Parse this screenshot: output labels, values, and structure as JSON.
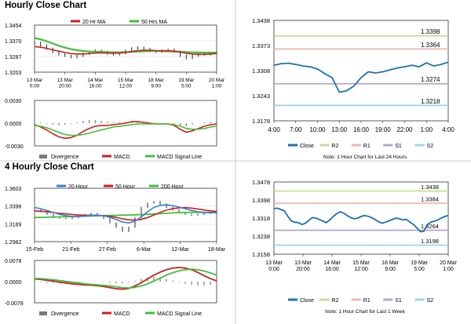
{
  "sections": {
    "hourly_title": "Hourly Close Chart",
    "four_hourly_title": "4 Hourly Close Chart"
  },
  "colors": {
    "price_bar": "#111111",
    "ma_red": "#cc1f1f",
    "ma_green": "#3fbf3f",
    "ma_blue": "#3a7fd0",
    "close_line": "#1f6fb2",
    "r2": "#c6dc97",
    "r1": "#f0b6b0",
    "s1": "#b7a5cf",
    "s2": "#9ed6e6",
    "divergence": "#7a7a7a",
    "grid": "#e3e3e3"
  },
  "chart_data": [
    {
      "id": "hourly_price",
      "type": "line",
      "title": "",
      "legend": [
        "20 Hr MA",
        "50 Hrs MA"
      ],
      "yticks": [
        "1.3454",
        "1.3370",
        "1.3287",
        "1.3203"
      ],
      "ylim": [
        1.3203,
        1.3454
      ],
      "xticks": [
        [
          "13 Mar",
          "0:00"
        ],
        [
          "13 Mar",
          "20:00"
        ],
        [
          "14 Mar",
          "16:00"
        ],
        [
          "15 Mar",
          "12:00"
        ],
        [
          "18 Mar",
          "9:00"
        ],
        [
          "19 Mar",
          "5:00"
        ],
        [
          "20 Mar",
          "1:00"
        ]
      ],
      "series": [
        {
          "name": "Close",
          "values": [
            1.336,
            1.3345,
            1.3328,
            1.331,
            1.3298,
            1.329,
            1.3283,
            1.329,
            1.3302,
            1.3312,
            1.3318,
            1.331,
            1.3302,
            1.3298,
            1.3305,
            1.3318,
            1.333,
            1.3334,
            1.3326,
            1.3316,
            1.3312,
            1.3318,
            1.3322,
            1.3312,
            1.329,
            1.3278,
            1.3292,
            1.33,
            1.3298,
            1.3305,
            1.331
          ]
        },
        {
          "name": "20 Hr MA",
          "values": [
            1.334,
            1.3336,
            1.333,
            1.3322,
            1.3315,
            1.3308,
            1.3302,
            1.33,
            1.33,
            1.3302,
            1.3305,
            1.3306,
            1.3305,
            1.3304,
            1.3305,
            1.3308,
            1.3313,
            1.3318,
            1.332,
            1.332,
            1.3318,
            1.3317,
            1.3317,
            1.3315,
            1.331,
            1.3304,
            1.33,
            1.3298,
            1.3298,
            1.33,
            1.3302
          ]
        },
        {
          "name": "50 Hrs MA",
          "values": [
            1.3385,
            1.3378,
            1.3368,
            1.3356,
            1.3344,
            1.3334,
            1.3326,
            1.332,
            1.3316,
            1.3313,
            1.3312,
            1.3311,
            1.331,
            1.3309,
            1.3309,
            1.331,
            1.3311,
            1.3313,
            1.3314,
            1.3315,
            1.3315,
            1.3315,
            1.3314,
            1.3313,
            1.3312,
            1.331,
            1.3309,
            1.3308,
            1.3307,
            1.3307,
            1.3307
          ]
        }
      ]
    },
    {
      "id": "hourly_macd",
      "type": "line",
      "title": "",
      "legend": [
        "Divergence",
        "MACD",
        "MACD Signal Line"
      ],
      "yticks": [
        "0.0030",
        "0.0000",
        "-0.0030"
      ],
      "ylim": [
        -0.003,
        0.003
      ],
      "series": [
        {
          "name": "Divergence",
          "values": [
            0.0002,
            0.0001,
            -0.0001,
            -0.0002,
            -0.0003,
            -0.0002,
            -0.0001,
            0.0001,
            0.0003,
            0.0004,
            0.0004,
            0.0003,
            0.0002,
            0.0001,
            0.0001,
            0.0002,
            0.0003,
            0.0002,
            0.0001,
            0.0,
            -0.0001,
            -0.0001,
            0.0,
            -0.0001,
            -0.0003,
            -0.0004,
            -0.0002,
            0.0,
            0.0001,
            0.0002,
            0.0002
          ]
        },
        {
          "name": "MACD",
          "values": [
            -0.0002,
            -0.0005,
            -0.0009,
            -0.0014,
            -0.0018,
            -0.002,
            -0.0019,
            -0.0016,
            -0.0011,
            -0.0007,
            -0.0004,
            -0.0003,
            -0.0003,
            -0.0002,
            -0.0001,
            0.0,
            0.0002,
            0.0002,
            0.0001,
            0.0,
            -0.0001,
            -0.0001,
            -0.0001,
            -0.0003,
            -0.0008,
            -0.0012,
            -0.001,
            -0.0007,
            -0.0004,
            -0.0002,
            -0.0001
          ]
        },
        {
          "name": "MACD Signal Line",
          "values": [
            -0.0003,
            -0.0004,
            -0.0006,
            -0.0009,
            -0.0012,
            -0.0015,
            -0.0016,
            -0.0016,
            -0.0015,
            -0.0013,
            -0.0011,
            -0.0009,
            -0.0007,
            -0.0005,
            -0.0004,
            -0.0003,
            -0.0002,
            -0.0001,
            -0.0001,
            -0.0001,
            -0.0001,
            -0.0001,
            -0.0001,
            -0.0002,
            -0.0004,
            -0.0007,
            -0.0008,
            -0.0008,
            -0.0007,
            -0.0005,
            -0.0004
          ]
        }
      ]
    },
    {
      "id": "hourly_24h",
      "type": "line",
      "title": "",
      "note": "Note: 1 Hour Chart for Last 24 Hours",
      "legend": [
        "Close",
        "R2",
        "R1",
        "S1",
        "S2"
      ],
      "yticks": [
        "1.3438",
        "1.3373",
        "1.3308",
        "1.3243",
        "1.3178"
      ],
      "ylim": [
        1.3178,
        1.3438
      ],
      "xticks": [
        "4:00",
        "7:00",
        "10:00",
        "13:00",
        "16:00",
        "19:00",
        "22:00",
        "1:00",
        "4:00"
      ],
      "levels": [
        {
          "name": "R2",
          "value": 1.3398,
          "label": "1.3398"
        },
        {
          "name": "R1",
          "value": 1.3364,
          "label": "1.3364"
        },
        {
          "name": "S1",
          "value": 1.3274,
          "label": "1.3274"
        },
        {
          "name": "S2",
          "value": 1.3218,
          "label": "1.3218"
        }
      ],
      "series": [
        {
          "name": "Close",
          "values": [
            1.3322,
            1.3326,
            1.3327,
            1.3324,
            1.332,
            1.3318,
            1.3312,
            1.33,
            1.329,
            1.3252,
            1.3256,
            1.3268,
            1.329,
            1.3305,
            1.3302,
            1.3305,
            1.331,
            1.3315,
            1.3318,
            1.3322,
            1.3318,
            1.3328,
            1.332,
            1.3324,
            1.333
          ]
        }
      ]
    },
    {
      "id": "four_hourly_price",
      "type": "line",
      "title": "",
      "legend": [
        "20 Hour",
        "50 Hour",
        "200 Hour"
      ],
      "yticks": [
        "1.3603",
        "1.3396",
        "1.3189",
        "1.2982"
      ],
      "ylim": [
        1.2982,
        1.3603
      ],
      "xticks": [
        "15-Feb",
        "21-Feb",
        "27-Feb",
        "6-Mar",
        "12-Mar",
        "18-Mar"
      ],
      "series": [
        {
          "name": "Close",
          "values": [
            1.3355,
            1.333,
            1.33,
            1.327,
            1.3255,
            1.325,
            1.3262,
            1.328,
            1.33,
            1.331,
            1.329,
            1.325,
            1.32,
            1.315,
            1.31,
            1.315,
            1.326,
            1.338,
            1.343,
            1.345,
            1.342,
            1.338,
            1.335,
            1.332,
            1.33,
            1.329,
            1.33,
            1.332,
            1.331,
            1.332
          ]
        },
        {
          "name": "20 Hour",
          "values": [
            1.338,
            1.3365,
            1.3345,
            1.332,
            1.33,
            1.3285,
            1.3275,
            1.3275,
            1.328,
            1.3288,
            1.329,
            1.3282,
            1.3265,
            1.324,
            1.321,
            1.32,
            1.322,
            1.327,
            1.333,
            1.338,
            1.3405,
            1.341,
            1.34,
            1.3385,
            1.3365,
            1.3345,
            1.333,
            1.3322,
            1.3318,
            1.3318
          ]
        },
        {
          "name": "50 Hour",
          "values": [
            1.334,
            1.3335,
            1.3328,
            1.332,
            1.3312,
            1.3305,
            1.3298,
            1.3292,
            1.329,
            1.329,
            1.3288,
            1.3284,
            1.3276,
            1.3264,
            1.3248,
            1.3236,
            1.3232,
            1.324,
            1.3262,
            1.3292,
            1.3322,
            1.3348,
            1.3366,
            1.3376,
            1.3378,
            1.3372,
            1.3362,
            1.335,
            1.334,
            1.3333
          ]
        },
        {
          "name": "200 Hour",
          "values": [
            1.3262,
            1.3264,
            1.3266,
            1.3268,
            1.327,
            1.3272,
            1.3274,
            1.3276,
            1.3278,
            1.328,
            1.3282,
            1.3284,
            1.3286,
            1.3288,
            1.329,
            1.3292,
            1.3294,
            1.3297,
            1.33,
            1.3304,
            1.3308,
            1.3312,
            1.3316,
            1.332,
            1.3322,
            1.3323,
            1.3323,
            1.3322,
            1.3322,
            1.3322
          ]
        }
      ]
    },
    {
      "id": "four_hourly_macd",
      "type": "line",
      "title": "",
      "legend": [
        "Divergence",
        "MACD",
        "MACD Signal Line"
      ],
      "yticks": [
        "0.0078",
        "0.0000",
        "-0.0078"
      ],
      "ylim": [
        -0.0078,
        0.0078
      ],
      "series": [
        {
          "name": "Divergence",
          "values": [
            0.0,
            -0.0002,
            -0.0004,
            -0.0005,
            -0.0006,
            -0.0006,
            -0.0005,
            -0.0003,
            -0.0001,
            0.0,
            0.0,
            -0.0002,
            -0.0004,
            -0.0006,
            -0.0006,
            -0.0003,
            0.0003,
            0.001,
            0.0016,
            0.0018,
            0.0016,
            0.001,
            0.0004,
            -0.0002,
            -0.0008,
            -0.0012,
            -0.0014,
            -0.0014,
            -0.0012,
            -0.001
          ]
        },
        {
          "name": "MACD",
          "values": [
            0.001,
            0.0008,
            0.0005,
            0.0002,
            -0.0002,
            -0.0005,
            -0.0008,
            -0.001,
            -0.0012,
            -0.0013,
            -0.0015,
            -0.0018,
            -0.0022,
            -0.0026,
            -0.0028,
            -0.0025,
            -0.0016,
            -0.0004,
            0.001,
            0.0024,
            0.0035,
            0.0044,
            0.005,
            0.0052,
            0.005,
            0.0044,
            0.0034,
            0.0022,
            0.0011,
            0.0003
          ]
        },
        {
          "name": "MACD Signal Line",
          "values": [
            0.0012,
            0.0011,
            0.0009,
            0.0007,
            0.0004,
            0.0001,
            -0.0002,
            -0.0005,
            -0.0008,
            -0.001,
            -0.0012,
            -0.0014,
            -0.0016,
            -0.0019,
            -0.0022,
            -0.0023,
            -0.0021,
            -0.0016,
            -0.0008,
            0.0002,
            0.0013,
            0.0024,
            0.0033,
            0.004,
            0.0044,
            0.0046,
            0.0044,
            0.0039,
            0.0032,
            0.0024
          ]
        }
      ]
    },
    {
      "id": "four_hourly_week",
      "type": "line",
      "title": "",
      "note": "Note: 1 Hour Chart for Last 1 Week",
      "legend": [
        "Close",
        "R2",
        "R1",
        "S1",
        "S2"
      ],
      "yticks": [
        "1.3478",
        "1.3398",
        "1.3318",
        "1.3238",
        "1.3158"
      ],
      "ylim": [
        1.3158,
        1.3478
      ],
      "xticks": [
        [
          "13 Mar",
          "0:00"
        ],
        [
          "13 Mar",
          "20:00"
        ],
        [
          "14 Mar",
          "16:00"
        ],
        [
          "15 Mar",
          "12:00"
        ],
        [
          "18 Mar",
          "9:00"
        ],
        [
          "19 Mar",
          "5:00"
        ],
        [
          "20 Mar",
          "1:00"
        ]
      ],
      "levels": [
        {
          "name": "R2",
          "value": 1.3438,
          "label": "1.3438"
        },
        {
          "name": "R1",
          "value": 1.3384,
          "label": "1.3384"
        },
        {
          "name": "S1",
          "value": 1.3264,
          "label": "1.3264"
        },
        {
          "name": "S2",
          "value": 1.3198,
          "label": "1.3198"
        }
      ],
      "series": [
        {
          "name": "Close",
          "values": [
            1.336,
            1.3362,
            1.3356,
            1.335,
            1.3325,
            1.3305,
            1.33,
            1.3298,
            1.329,
            1.3295,
            1.3308,
            1.332,
            1.3318,
            1.3312,
            1.3305,
            1.3298,
            1.331,
            1.3325,
            1.3338,
            1.3346,
            1.334,
            1.333,
            1.332,
            1.3315,
            1.3318,
            1.3325,
            1.333,
            1.3326,
            1.332,
            1.3312,
            1.3302,
            1.3295,
            1.33,
            1.3306,
            1.3312,
            1.3318,
            1.3315,
            1.331,
            1.3312,
            1.33,
            1.329,
            1.3275,
            1.3258,
            1.326,
            1.329,
            1.33,
            1.3304,
            1.331,
            1.3318,
            1.3325,
            1.333
          ]
        }
      ]
    }
  ]
}
